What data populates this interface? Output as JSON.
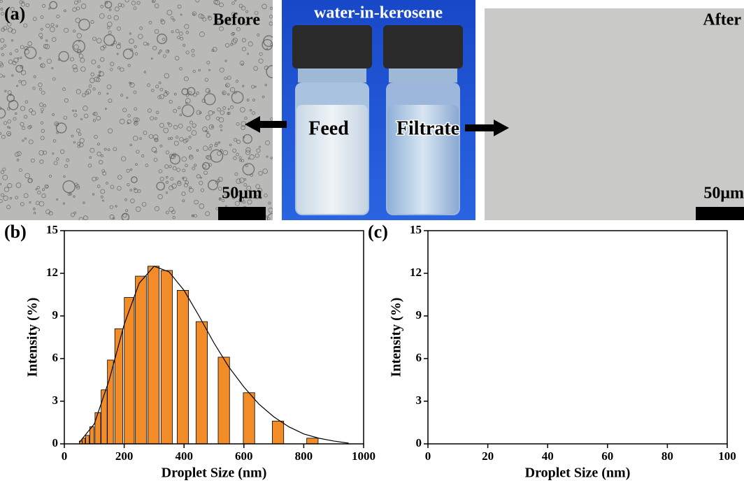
{
  "panel_a": {
    "label": "(a)",
    "before": "Before",
    "title": "water-in-kerosene",
    "feed": "Feed",
    "filtrate": "Filtrate",
    "after": "After",
    "scale_left": "50μm",
    "scale_right": "50μm"
  },
  "chart_data": [
    {
      "type": "bar",
      "panel": "(b)",
      "xlabel": "Droplet Size (nm)",
      "ylabel": "Intensity (%)",
      "xlim": [
        0,
        1000
      ],
      "xticks": [
        0,
        200,
        400,
        600,
        800,
        1000
      ],
      "ylim": [
        0,
        15
      ],
      "yticks": [
        0,
        3,
        6,
        9,
        12,
        15
      ],
      "color": "#f28c28",
      "x": [
        55,
        65,
        77,
        92,
        112,
        133,
        154,
        182,
        217,
        256,
        298,
        342,
        396,
        459,
        533,
        617,
        714,
        829
      ],
      "values": [
        0.2,
        0.4,
        0.6,
        1.2,
        2.2,
        3.8,
        5.9,
        8.1,
        10.3,
        11.8,
        12.5,
        12.2,
        10.8,
        8.6,
        6.1,
        3.6,
        1.6,
        0.4
      ],
      "fit": {
        "color": "#000000",
        "x": [
          50,
          100,
          150,
          200,
          250,
          300,
          350,
          400,
          450,
          500,
          550,
          600,
          650,
          700,
          750,
          800,
          850,
          900,
          950
        ],
        "values": [
          0.1,
          1.4,
          4.5,
          8.4,
          11.3,
          12.5,
          12.1,
          10.8,
          9.0,
          7.1,
          5.4,
          4.0,
          2.8,
          1.9,
          1.2,
          0.7,
          0.4,
          0.2,
          0.05
        ]
      }
    },
    {
      "type": "bar",
      "panel": "(c)",
      "xlabel": "Droplet Size (nm)",
      "ylabel": "Intensity (%)",
      "xlim": [
        0,
        100
      ],
      "xticks": [
        0,
        20,
        40,
        60,
        80,
        100
      ],
      "ylim": [
        0,
        15
      ],
      "yticks": [
        0,
        3,
        6,
        9,
        12,
        15
      ],
      "color": "#f28c28",
      "x": [],
      "values": []
    }
  ]
}
